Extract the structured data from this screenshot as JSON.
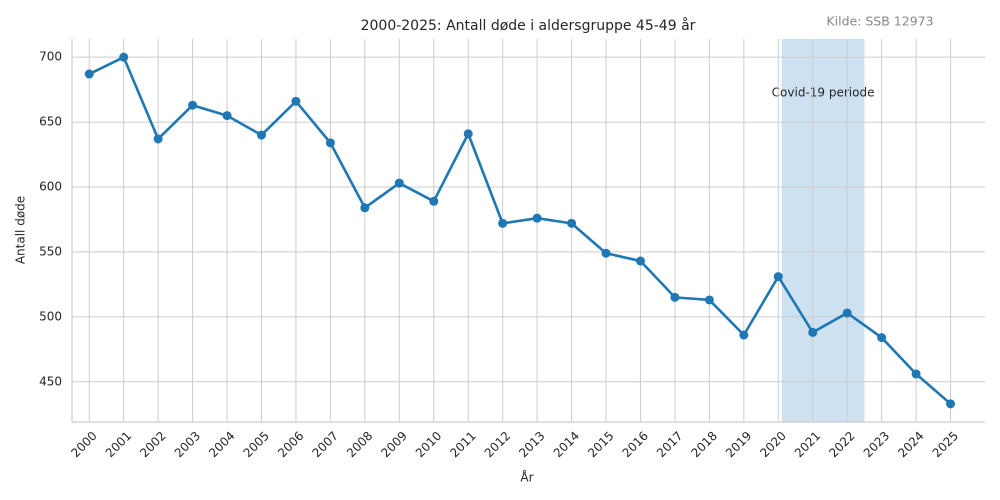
{
  "chart_data": {
    "type": "line",
    "title": "2000-2025: Antall døde i aldersgruppe 45-49 år",
    "source": "Kilde: SSB 12973",
    "x_label": "År",
    "y_label": "Antall døde",
    "x": [
      2000,
      2001,
      2002,
      2003,
      2004,
      2005,
      2006,
      2007,
      2008,
      2009,
      2010,
      2011,
      2012,
      2013,
      2014,
      2015,
      2016,
      2017,
      2018,
      2019,
      2020,
      2021,
      2022,
      2023,
      2024,
      2025
    ],
    "series": [
      {
        "name": "Antall døde",
        "color": "#1f77b4",
        "values": [
          687,
          700,
          637,
          663,
          655,
          640,
          666,
          634,
          584,
          603,
          589,
          641,
          572,
          576,
          572,
          549,
          543,
          515,
          513,
          486,
          531,
          488,
          503,
          484,
          456,
          433
        ]
      }
    ],
    "highlight": {
      "start": 2020.1,
      "end": 2022.5,
      "label": "Covid-19 periode",
      "color": "#9ec3e3"
    },
    "xlim": [
      1999.5,
      2026
    ],
    "xticks": [
      2000,
      2001,
      2002,
      2003,
      2004,
      2005,
      2006,
      2007,
      2008,
      2009,
      2010,
      2011,
      2012,
      2013,
      2014,
      2015,
      2016,
      2017,
      2018,
      2019,
      2020,
      2021,
      2022,
      2023,
      2024,
      2025
    ],
    "ylim": [
      419,
      714
    ],
    "yticks": [
      450,
      500,
      550,
      600,
      650,
      700
    ],
    "grid": true
  }
}
